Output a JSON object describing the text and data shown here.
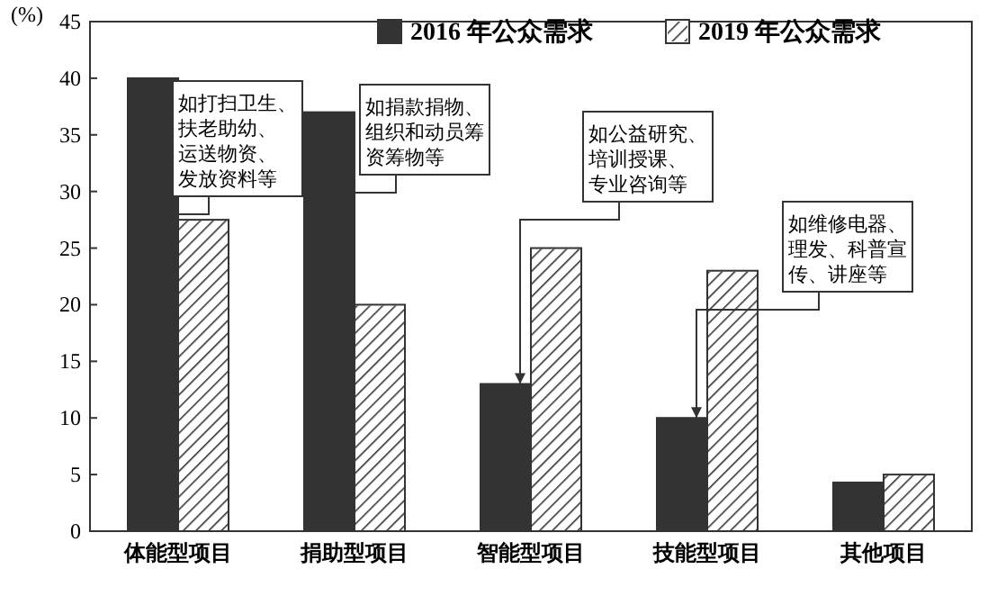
{
  "chart_data": {
    "type": "bar",
    "ylabel": "(%)",
    "categories": [
      "体能型项目",
      "捐助型项目",
      "智能型项目",
      "技能型项目",
      "其他项目"
    ],
    "series": [
      {
        "name": "2016 年公众需求",
        "color": "#333333",
        "values": [
          40,
          37,
          13,
          10,
          4.3
        ]
      },
      {
        "name": "2019 年公众需求",
        "color": "#ffffff",
        "values": [
          27.5,
          20,
          25,
          23,
          5
        ]
      }
    ],
    "ylim": [
      0,
      45
    ],
    "yticks": [
      0,
      5,
      10,
      15,
      20,
      25,
      30,
      35,
      40,
      45
    ],
    "grid": false,
    "legend": "top",
    "annotations": [
      {
        "text": "如打扫卫生、扶老助幼、运送物资、发放资料等",
        "x": "体能型项目",
        "y": 40
      },
      {
        "text": "如捐款捐物、组织和动员筹资筹物等",
        "x": "捐助型项目",
        "y": 37
      },
      {
        "text": "如公益研究、培训授课、专业咨询等",
        "x": "智能型项目",
        "y": 13
      },
      {
        "text": "如维修电器、理发、科普宣传、讲座等",
        "x": "技能型项目",
        "y": 10
      }
    ]
  }
}
